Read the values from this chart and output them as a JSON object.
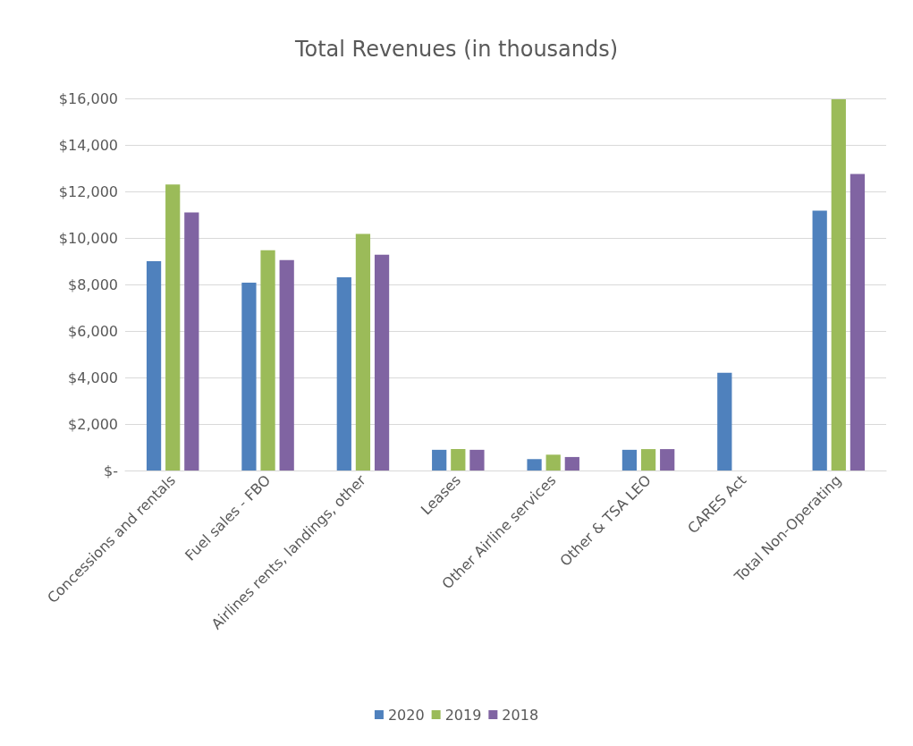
{
  "chart_data": {
    "type": "bar",
    "title": "Total Revenues (in thousands)",
    "categories": [
      "Concessions and rentals",
      "Fuel sales - FBO",
      "Airlines rents, landings, other",
      "Leases",
      "Other Airline services",
      "Other & TSA LEO",
      "CARES Act",
      "Total Non-Operating"
    ],
    "series": [
      {
        "name": "2020",
        "color": "#4f81bd",
        "values": [
          9000,
          8080,
          8310,
          890,
          490,
          890,
          4200,
          11170
        ]
      },
      {
        "name": "2019",
        "color": "#9bbb59",
        "values": [
          12300,
          9470,
          10170,
          920,
          680,
          920,
          null,
          15960
        ]
      },
      {
        "name": "2018",
        "color": "#8064a2",
        "values": [
          11100,
          9050,
          9280,
          890,
          580,
          920,
          null,
          12750
        ]
      }
    ],
    "ylim": [
      0,
      16000
    ],
    "yticks": [
      {
        "value": 0,
        "label": "$-"
      },
      {
        "value": 2000,
        "label": "$2,000"
      },
      {
        "value": 4000,
        "label": "$4,000"
      },
      {
        "value": 6000,
        "label": "$6,000"
      },
      {
        "value": 8000,
        "label": "$8,000"
      },
      {
        "value": 10000,
        "label": "$10,000"
      },
      {
        "value": 12000,
        "label": "$12,000"
      },
      {
        "value": 14000,
        "label": "$14,000"
      },
      {
        "value": 16000,
        "label": "$16,000"
      }
    ],
    "grid": "y",
    "legend": "bottom"
  }
}
